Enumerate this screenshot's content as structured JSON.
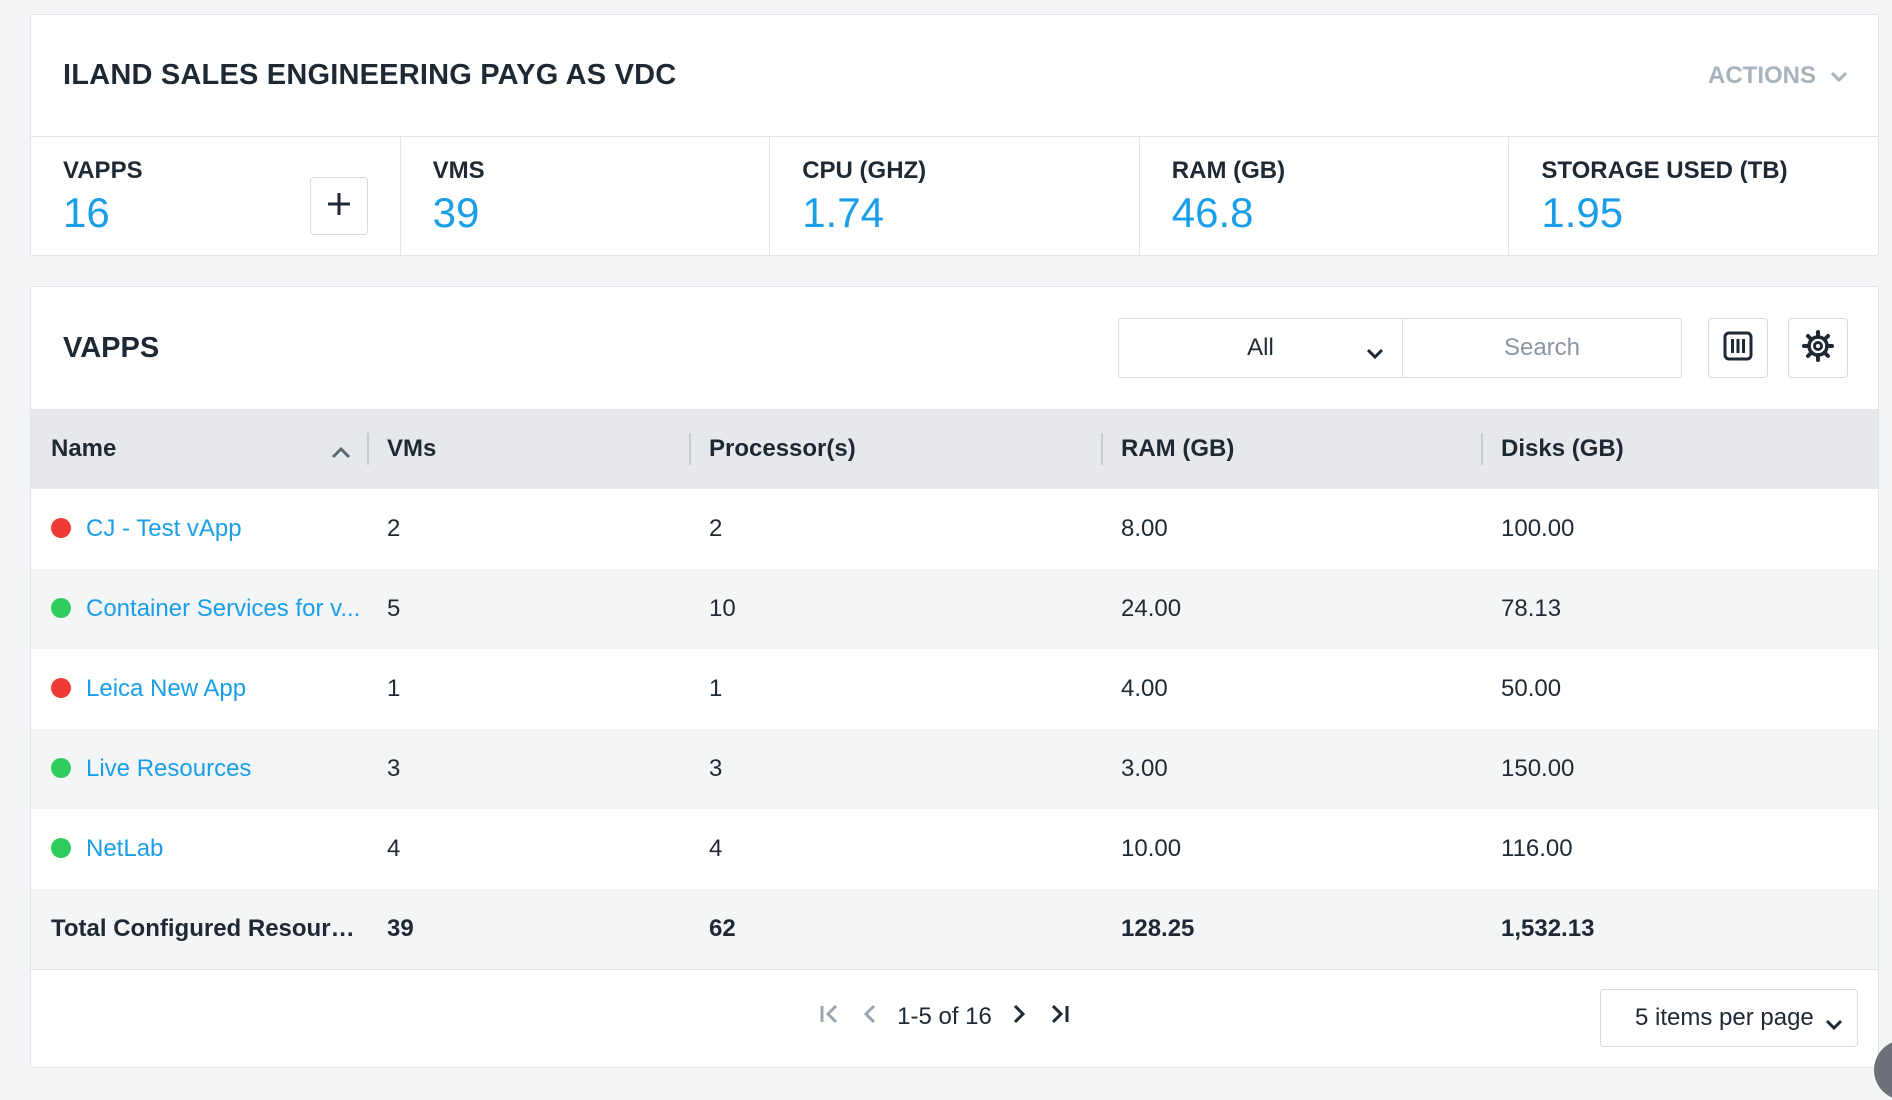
{
  "summary": {
    "title": "ILAND SALES ENGINEERING PAYG AS VDC",
    "actions_label": "ACTIONS",
    "stats": [
      {
        "label": "VAPPS",
        "value": "16"
      },
      {
        "label": "VMS",
        "value": "39"
      },
      {
        "label": "CPU (GHZ)",
        "value": "1.74"
      },
      {
        "label": "RAM (GB)",
        "value": "46.8"
      },
      {
        "label": "STORAGE USED (TB)",
        "value": "1.95"
      }
    ]
  },
  "vapps": {
    "title": "VAPPS",
    "filter": {
      "selected": "All"
    },
    "search": {
      "placeholder": "Search"
    },
    "columns": [
      "Name",
      "VMs",
      "Processor(s)",
      "RAM (GB)",
      "Disks (GB)"
    ],
    "rows": [
      {
        "status": "stopped",
        "status_color": "#ef3a3a",
        "name": "CJ - Test vApp",
        "vms": "2",
        "processors": "2",
        "ram": "8.00",
        "disks": "100.00"
      },
      {
        "status": "running",
        "status_color": "#2ecc5c",
        "name": "Container Services for v...",
        "vms": "5",
        "processors": "10",
        "ram": "24.00",
        "disks": "78.13"
      },
      {
        "status": "stopped",
        "status_color": "#ef3a3a",
        "name": "Leica New App",
        "vms": "1",
        "processors": "1",
        "ram": "4.00",
        "disks": "50.00"
      },
      {
        "status": "running",
        "status_color": "#2ecc5c",
        "name": "Live Resources",
        "vms": "3",
        "processors": "3",
        "ram": "3.00",
        "disks": "150.00"
      },
      {
        "status": "running",
        "status_color": "#2ecc5c",
        "name": "NetLab",
        "vms": "4",
        "processors": "4",
        "ram": "10.00",
        "disks": "116.00"
      }
    ],
    "total": {
      "label": "Total Configured Resources",
      "vms": "39",
      "processors": "62",
      "ram": "128.25",
      "disks": "1,532.13"
    },
    "pagination": {
      "range_text": "1-5 of 16",
      "per_page_label": "5 items per page"
    }
  },
  "colors": {
    "accent": "#1a9ee8",
    "running": "#2ecc5c",
    "stopped": "#ef3a3a"
  }
}
